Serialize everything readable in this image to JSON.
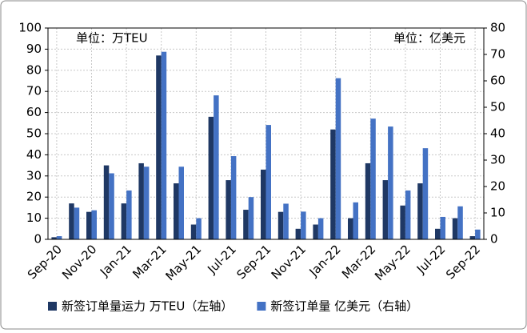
{
  "chart_data": {
    "type": "bar",
    "categories": [
      "Sep-20",
      null,
      "Nov-20",
      null,
      "Jan-21",
      null,
      "Mar-21",
      null,
      "May-21",
      null,
      "Jul-21",
      null,
      "Sep-21",
      null,
      "Nov-21",
      null,
      "Jan-22",
      null,
      "Mar-22",
      null,
      "May-22",
      null,
      "Jul-22",
      null,
      "Sep-22"
    ],
    "series": [
      {
        "name": "新签订单量运力 万TEU（左轴）",
        "color": "#1f3864",
        "values": [
          1,
          17,
          13,
          35,
          17,
          36,
          87,
          26.5,
          7,
          58,
          28,
          14,
          33,
          13,
          5,
          7,
          52,
          10,
          36,
          28,
          16,
          26.5,
          5,
          10,
          1.5
        ]
      },
      {
        "name": "新签订单量 亿美元（右轴）",
        "color": "#4472c4",
        "axis": "y2",
        "values": [
          1.2,
          12,
          11,
          25,
          18.5,
          27.5,
          71,
          27.5,
          8,
          54.5,
          31.5,
          16,
          43.3,
          13.5,
          10.5,
          8,
          61,
          14,
          45.7,
          42.7,
          18.5,
          34.5,
          8.5,
          12.5,
          3.7
        ]
      }
    ],
    "ylim": [
      0,
      100
    ],
    "yticks": [
      0,
      10,
      20,
      30,
      40,
      50,
      60,
      70,
      80,
      90,
      100
    ],
    "y2lim": [
      0,
      80
    ],
    "y2ticks": [
      0,
      10,
      20,
      30,
      40,
      50,
      60,
      70,
      80
    ],
    "annotations": [
      "单位：万TEU",
      "单位：亿美元"
    ],
    "grid": true,
    "legend": "bottom"
  }
}
